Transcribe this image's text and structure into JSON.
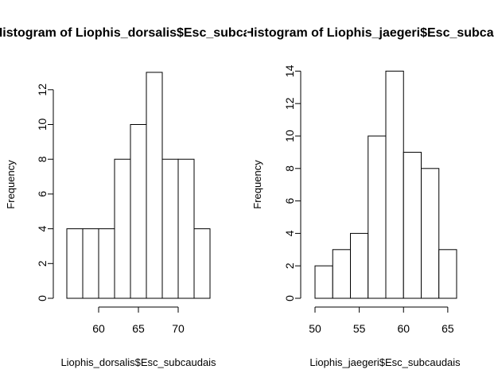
{
  "chart_data": [
    {
      "type": "bar",
      "title": "Histogram of Liophis_dorsalis$Esc_subcaudais",
      "xlabel": "Liophis_dorsalis$Esc_subcaudais",
      "ylabel": "Frequency",
      "bins": [
        {
          "start": 56,
          "end": 58,
          "count": 4
        },
        {
          "start": 58,
          "end": 60,
          "count": 4
        },
        {
          "start": 60,
          "end": 62,
          "count": 4
        },
        {
          "start": 62,
          "end": 64,
          "count": 8
        },
        {
          "start": 64,
          "end": 66,
          "count": 10
        },
        {
          "start": 66,
          "end": 68,
          "count": 13
        },
        {
          "start": 68,
          "end": 70,
          "count": 8
        },
        {
          "start": 70,
          "end": 72,
          "count": 8
        },
        {
          "start": 72,
          "end": 74,
          "count": 4
        }
      ],
      "xticks": [
        60,
        65,
        70
      ],
      "yticks": [
        0,
        2,
        4,
        6,
        8,
        10,
        12
      ],
      "xlim": [
        56,
        74
      ],
      "ylim": [
        0,
        13
      ]
    },
    {
      "type": "bar",
      "title": "Histogram of Liophis_jaegeri$Esc_subcaudais",
      "xlabel": "Liophis_jaegeri$Esc_subcaudais",
      "ylabel": "Frequency",
      "bins": [
        {
          "start": 50,
          "end": 52,
          "count": 2
        },
        {
          "start": 52,
          "end": 54,
          "count": 3
        },
        {
          "start": 54,
          "end": 56,
          "count": 4
        },
        {
          "start": 56,
          "end": 58,
          "count": 10
        },
        {
          "start": 58,
          "end": 60,
          "count": 14
        },
        {
          "start": 60,
          "end": 62,
          "count": 9
        },
        {
          "start": 62,
          "end": 64,
          "count": 8
        },
        {
          "start": 64,
          "end": 66,
          "count": 3
        }
      ],
      "xticks": [
        50,
        55,
        60,
        65
      ],
      "yticks": [
        0,
        2,
        4,
        6,
        8,
        10,
        12,
        14
      ],
      "xlim": [
        50,
        66
      ],
      "ylim": [
        0,
        14
      ]
    }
  ]
}
